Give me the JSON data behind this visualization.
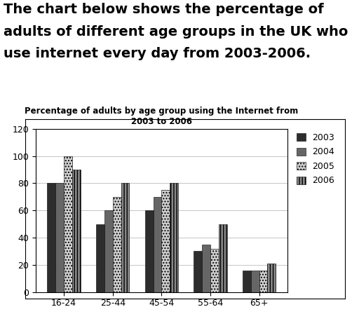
{
  "title": "Percentage of adults by age group using the Internet from\n2003 to 2006",
  "super_title_line1": "The chart below shows the percentage of",
  "super_title_line2": "adults of different age groups in the UK who",
  "super_title_line3": "use internet every day from 2003-2006.",
  "categories": [
    "16-24",
    "25-44",
    "45-54",
    "55-64",
    "65+"
  ],
  "years": [
    "2003",
    "2004",
    "2005",
    "2006"
  ],
  "values": {
    "2003": [
      80,
      50,
      60,
      30,
      16
    ],
    "2004": [
      80,
      60,
      70,
      35,
      16
    ],
    "2005": [
      100,
      70,
      75,
      32,
      16
    ],
    "2006": [
      90,
      80,
      80,
      50,
      21
    ]
  },
  "bar_colors": [
    "#2d2d2d",
    "#666666",
    "#d0d0d0",
    "#888888"
  ],
  "bar_hatches": [
    "",
    "",
    "....",
    "||||"
  ],
  "ylim": [
    0,
    120
  ],
  "yticks": [
    0,
    20,
    40,
    60,
    80,
    100,
    120
  ],
  "chart_bg": "#ffffff",
  "outer_bg": "#ffffff",
  "title_fontsize": 8.5,
  "super_title_fontsize": 14,
  "tick_fontsize": 9,
  "legend_fontsize": 9
}
